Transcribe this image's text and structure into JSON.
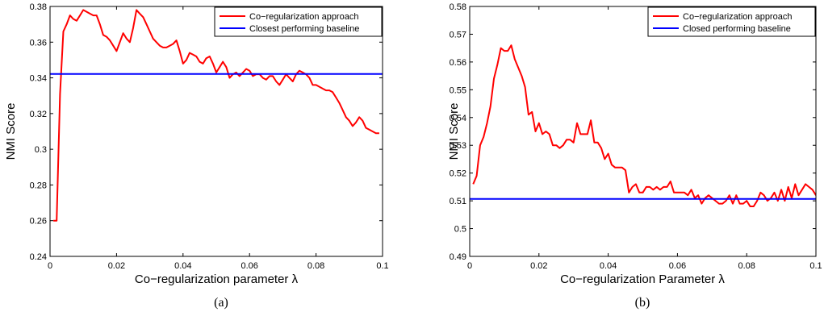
{
  "chart_data": [
    {
      "type": "line",
      "caption": "(a)",
      "xlabel": "Co−regularization parameter λ",
      "ylabel": "NMI Score",
      "xlim": [
        0,
        0.1
      ],
      "ylim": [
        0.24,
        0.38
      ],
      "xticks": [
        0,
        0.02,
        0.04,
        0.06,
        0.08,
        0.1
      ],
      "yticks": [
        0.24,
        0.26,
        0.28,
        0.3,
        0.32,
        0.34,
        0.36,
        0.38
      ],
      "xtick_labels": [
        "0",
        "0.02",
        "0.04",
        "0.06",
        "0.08",
        "0.1"
      ],
      "ytick_labels": [
        "0.24",
        "0.26",
        "0.28",
        "0.3",
        "0.32",
        "0.34",
        "0.36",
        "0.38"
      ],
      "grid": false,
      "legend_position": "top-right",
      "series": [
        {
          "name": "Co−regularization approach",
          "color": "#ff0000",
          "x": [
            0.001,
            0.002,
            0.003,
            0.004,
            0.005,
            0.006,
            0.007,
            0.008,
            0.009,
            0.01,
            0.011,
            0.012,
            0.013,
            0.014,
            0.015,
            0.016,
            0.017,
            0.018,
            0.019,
            0.02,
            0.021,
            0.022,
            0.023,
            0.024,
            0.025,
            0.026,
            0.027,
            0.028,
            0.029,
            0.03,
            0.031,
            0.032,
            0.033,
            0.034,
            0.035,
            0.036,
            0.037,
            0.038,
            0.039,
            0.04,
            0.041,
            0.042,
            0.043,
            0.044,
            0.045,
            0.046,
            0.047,
            0.048,
            0.049,
            0.05,
            0.051,
            0.052,
            0.053,
            0.054,
            0.055,
            0.056,
            0.057,
            0.058,
            0.059,
            0.06,
            0.061,
            0.062,
            0.063,
            0.064,
            0.065,
            0.066,
            0.067,
            0.068,
            0.069,
            0.07,
            0.071,
            0.072,
            0.073,
            0.074,
            0.075,
            0.076,
            0.077,
            0.078,
            0.079,
            0.08,
            0.081,
            0.082,
            0.083,
            0.084,
            0.085,
            0.086,
            0.087,
            0.088,
            0.089,
            0.09,
            0.091,
            0.092,
            0.093,
            0.094,
            0.095,
            0.096,
            0.097,
            0.098,
            0.099
          ],
          "y": [
            0.26,
            0.26,
            0.331,
            0.366,
            0.37,
            0.375,
            0.373,
            0.372,
            0.375,
            0.378,
            0.377,
            0.376,
            0.375,
            0.375,
            0.37,
            0.364,
            0.363,
            0.361,
            0.358,
            0.355,
            0.36,
            0.365,
            0.362,
            0.36,
            0.368,
            0.378,
            0.376,
            0.374,
            0.37,
            0.366,
            0.362,
            0.36,
            0.358,
            0.357,
            0.357,
            0.358,
            0.359,
            0.361,
            0.355,
            0.348,
            0.35,
            0.354,
            0.353,
            0.352,
            0.349,
            0.348,
            0.351,
            0.352,
            0.348,
            0.343,
            0.346,
            0.349,
            0.346,
            0.34,
            0.342,
            0.343,
            0.341,
            0.343,
            0.345,
            0.344,
            0.341,
            0.342,
            0.342,
            0.34,
            0.339,
            0.341,
            0.341,
            0.338,
            0.336,
            0.339,
            0.342,
            0.34,
            0.338,
            0.342,
            0.344,
            0.343,
            0.342,
            0.34,
            0.336,
            0.336,
            0.335,
            0.334,
            0.333,
            0.333,
            0.332,
            0.329,
            0.326,
            0.322,
            0.318,
            0.316,
            0.313,
            0.315,
            0.318,
            0.316,
            0.312,
            0.311,
            0.31,
            0.309,
            0.309
          ]
        },
        {
          "name": "Closest performing baseline",
          "color": "#0000ff",
          "x": [
            0,
            0.1
          ],
          "y": [
            0.3422,
            0.3422
          ]
        }
      ]
    },
    {
      "type": "line",
      "caption": "(b)",
      "xlabel": "Co−regularization Parameter λ",
      "ylabel": "NMI Score",
      "xlim": [
        0,
        0.1
      ],
      "ylim": [
        0.49,
        0.58
      ],
      "xticks": [
        0,
        0.02,
        0.04,
        0.06,
        0.08,
        0.1
      ],
      "yticks": [
        0.49,
        0.5,
        0.51,
        0.52,
        0.53,
        0.54,
        0.55,
        0.56,
        0.57,
        0.58
      ],
      "xtick_labels": [
        "0",
        "0.02",
        "0.04",
        "0.06",
        "0.08",
        "0.1"
      ],
      "ytick_labels": [
        "0.49",
        "0.5",
        "0.51",
        "0.52",
        "0.53",
        "0.54",
        "0.55",
        "0.56",
        "0.57",
        "0.58"
      ],
      "grid": false,
      "legend_position": "top-right",
      "series": [
        {
          "name": "Co−regularization approach",
          "color": "#ff0000",
          "x": [
            0.001,
            0.002,
            0.003,
            0.004,
            0.005,
            0.006,
            0.007,
            0.008,
            0.009,
            0.01,
            0.011,
            0.012,
            0.013,
            0.014,
            0.015,
            0.016,
            0.017,
            0.018,
            0.019,
            0.02,
            0.021,
            0.022,
            0.023,
            0.024,
            0.025,
            0.026,
            0.027,
            0.028,
            0.029,
            0.03,
            0.031,
            0.032,
            0.033,
            0.034,
            0.035,
            0.036,
            0.037,
            0.038,
            0.039,
            0.04,
            0.041,
            0.042,
            0.043,
            0.044,
            0.045,
            0.046,
            0.047,
            0.048,
            0.049,
            0.05,
            0.051,
            0.052,
            0.053,
            0.054,
            0.055,
            0.056,
            0.057,
            0.058,
            0.059,
            0.06,
            0.061,
            0.062,
            0.063,
            0.064,
            0.065,
            0.066,
            0.067,
            0.068,
            0.069,
            0.07,
            0.071,
            0.072,
            0.073,
            0.074,
            0.075,
            0.076,
            0.077,
            0.078,
            0.079,
            0.08,
            0.081,
            0.082,
            0.083,
            0.084,
            0.085,
            0.086,
            0.087,
            0.088,
            0.089,
            0.09,
            0.091,
            0.092,
            0.093,
            0.094,
            0.095,
            0.096,
            0.097,
            0.098,
            0.099,
            0.1
          ],
          "y": [
            0.516,
            0.519,
            0.53,
            0.533,
            0.538,
            0.544,
            0.554,
            0.559,
            0.565,
            0.564,
            0.564,
            0.566,
            0.561,
            0.558,
            0.555,
            0.551,
            0.541,
            0.542,
            0.535,
            0.538,
            0.534,
            0.535,
            0.534,
            0.53,
            0.53,
            0.529,
            0.53,
            0.532,
            0.532,
            0.531,
            0.538,
            0.534,
            0.534,
            0.534,
            0.539,
            0.531,
            0.531,
            0.529,
            0.525,
            0.527,
            0.523,
            0.522,
            0.522,
            0.522,
            0.521,
            0.513,
            0.515,
            0.516,
            0.513,
            0.513,
            0.515,
            0.515,
            0.514,
            0.515,
            0.514,
            0.515,
            0.515,
            0.517,
            0.513,
            0.513,
            0.513,
            0.513,
            0.512,
            0.514,
            0.511,
            0.512,
            0.509,
            0.511,
            0.512,
            0.511,
            0.51,
            0.509,
            0.509,
            0.51,
            0.512,
            0.509,
            0.512,
            0.509,
            0.509,
            0.51,
            0.508,
            0.508,
            0.51,
            0.513,
            0.512,
            0.51,
            0.511,
            0.513,
            0.51,
            0.514,
            0.51,
            0.515,
            0.511,
            0.516,
            0.512,
            0.514,
            0.516,
            0.515,
            0.514,
            0.512
          ]
        },
        {
          "name": "Closed performing baseline",
          "color": "#0000ff",
          "x": [
            0,
            0.1
          ],
          "y": [
            0.5107,
            0.5107
          ]
        }
      ]
    }
  ]
}
